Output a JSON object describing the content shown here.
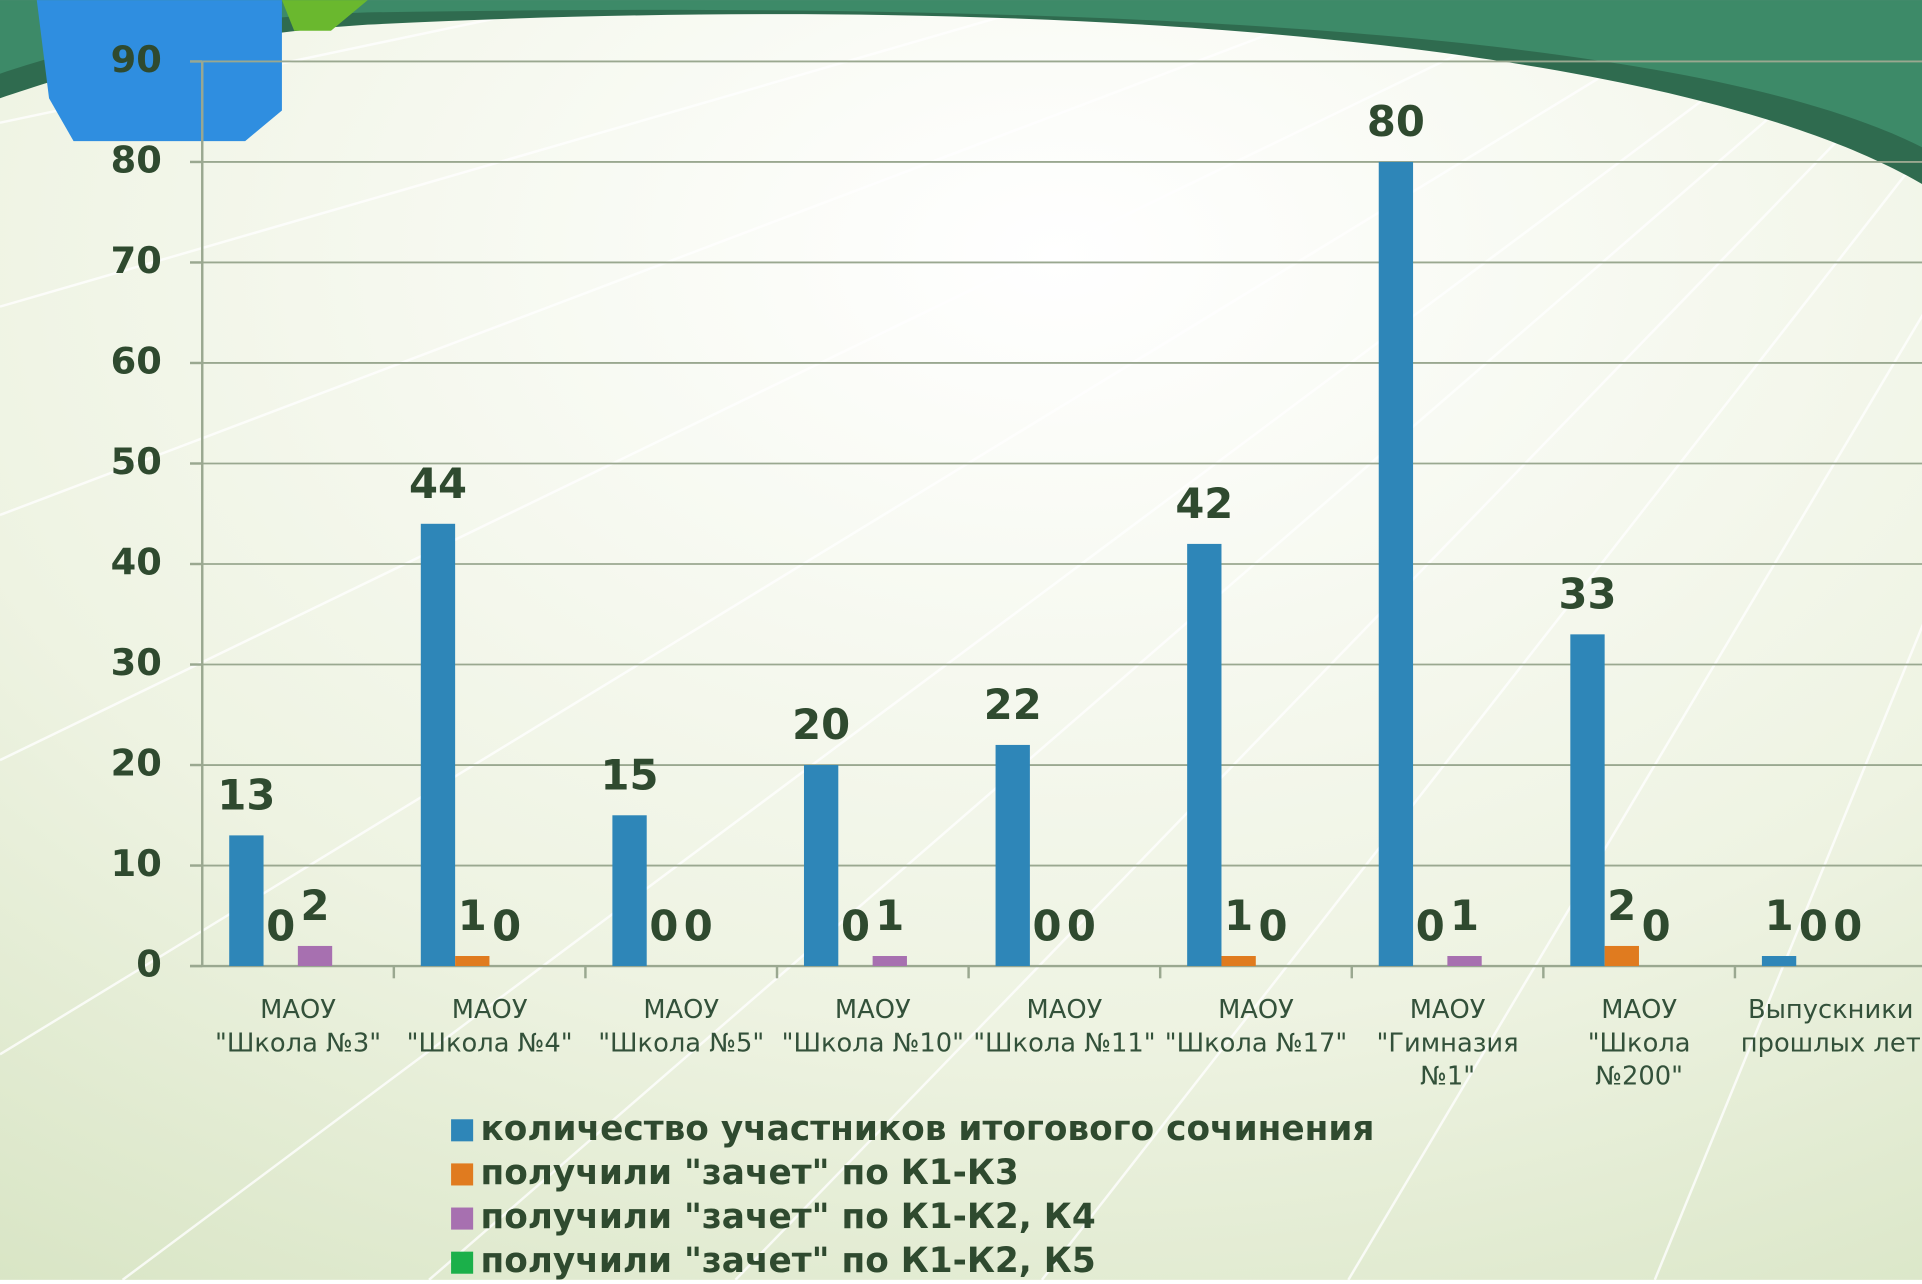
{
  "chart_data": {
    "type": "bar",
    "categories": [
      "МАОУ\n\"Школа №3\"",
      "МАОУ\n\"Школа №4\"",
      "МАОУ\n\"Школа №5\"",
      "МАОУ\n\"Школа №10\"",
      "МАОУ\n\"Школа №11\"",
      "МАОУ\n\"Школа №17\"",
      "МАОУ\n\"Гимназия\n№1\"",
      "МАОУ\n\"Школа\n№200\"",
      "Выпускники\nпрошлых лет"
    ],
    "series": [
      {
        "name": "количество участников итогового сочинения",
        "color": "#2e86b8",
        "values": [
          13,
          44,
          15,
          20,
          22,
          42,
          80,
          33,
          1
        ],
        "show_labels": true
      },
      {
        "name": "получили \"зачет\" по К1-К3",
        "color": "#e07b1f",
        "values": [
          0,
          1,
          0,
          0,
          0,
          1,
          0,
          2,
          0
        ],
        "show_labels": true
      },
      {
        "name": "получили \"зачет\" по К1-К2, К4",
        "color": "#a770b0",
        "values": [
          2,
          0,
          0,
          1,
          0,
          0,
          1,
          0,
          0
        ],
        "show_labels": true
      },
      {
        "name": "получили \"зачет\" по К1-К2, К5",
        "color": "#1bb04a",
        "values": [
          0,
          0,
          0,
          0,
          0,
          0,
          0,
          0,
          0
        ],
        "show_labels": false
      }
    ],
    "ylim": [
      0,
      90
    ],
    "yticks": [
      0,
      10,
      20,
      30,
      40,
      50,
      60,
      70,
      80,
      90
    ],
    "grid": true
  }
}
